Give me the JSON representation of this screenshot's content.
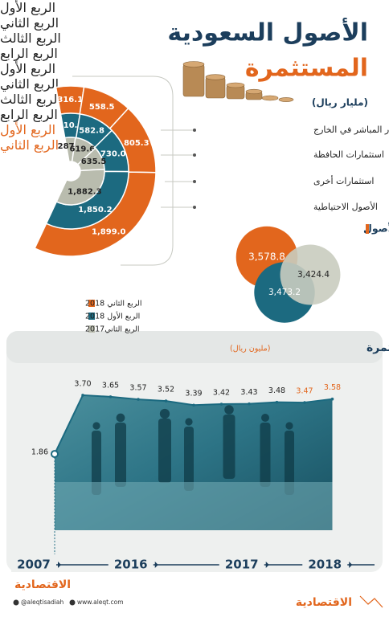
{
  "header": {
    "title_line1": "الأصول السعودية",
    "title_line2": "المستثمرة",
    "unit": "(مليار ريال)"
  },
  "chart_data": [
    {
      "type": "radial",
      "categories": [
        "الاستثمار المباشر في الخارج",
        "استثمارات الحافظة",
        "استثمارات أخرى",
        "الأصول الاحتياطية"
      ],
      "series": [
        {
          "name": "الربع الثاني 2018",
          "color": "#e2661d",
          "values": [
            316.1,
            558.5,
            805.3,
            1899.0
          ],
          "value_labels": [
            "316.1",
            "558.5",
            "805.3",
            "1,899.0"
          ]
        },
        {
          "name": "الربع الأول 2018",
          "color": "#1c6a80",
          "values": [
            310.2,
            582.8,
            730.0,
            1850.2
          ],
          "value_labels": [
            "310.2",
            "582.8",
            "730.0",
            "1,850.2"
          ]
        },
        {
          "name": "الربع الثاني2017",
          "color": "#b9bcae",
          "values": [
            287.1,
            619.6,
            635.5,
            1882.3
          ],
          "value_labels": [
            "287.1",
            "619.6",
            "635.5",
            "1,882.3"
          ]
        }
      ]
    },
    {
      "type": "bubble",
      "title": "إجمالي الأصول",
      "values": [
        3578.8,
        3473.2,
        3424.4
      ],
      "value_labels": [
        "3,578.8",
        "3,473.2",
        "3,424.4"
      ],
      "colors": [
        "#e2661d",
        "#1c6a80",
        "#c9ccbf"
      ]
    },
    {
      "type": "line",
      "title": "تطور الأصول المستثمرة",
      "subtitle": "(مليون ريال)",
      "categories": [
        null,
        "الربع الأول",
        "الربع الثاني",
        "الربع الثالث",
        "الربع الرابع",
        "الربع الأول",
        "الربع الثاني",
        "الربع الثالث",
        "الربع الرابع",
        "الربع الأول",
        "الربع الثاني"
      ],
      "values": [
        1.86,
        3.7,
        3.65,
        3.57,
        3.52,
        3.39,
        3.42,
        3.43,
        3.48,
        3.47,
        3.58
      ],
      "value_labels": [
        "1.86",
        "3.70",
        "3.65",
        "3.57",
        "3.52",
        "3.39",
        "3.42",
        "3.43",
        "3.48",
        "3.47",
        "3.58"
      ],
      "label_colors": [
        "#222222",
        "#222222",
        "#222222",
        "#222222",
        "#222222",
        "#222222",
        "#222222",
        "#222222",
        "#222222",
        "#e2661d",
        "#e2661d"
      ],
      "years": [
        "2007",
        "2016",
        "2017",
        "2018"
      ],
      "color": "#1c6a80",
      "ylim": [
        0,
        4
      ]
    }
  ],
  "footer": {
    "logo": "الاقتصادية",
    "twitter": "@aleqtisadiah",
    "website": "www.aleqt.com"
  }
}
